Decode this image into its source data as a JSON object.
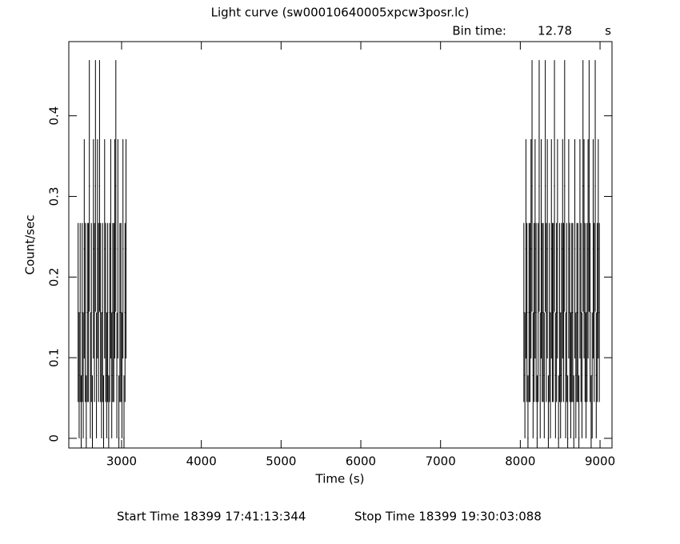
{
  "chart_data": {
    "type": "errorbar",
    "title": "Light curve (sw00010640005xpcw3posr.lc)",
    "bin_time_label": "Bin time:",
    "bin_time": 12.78,
    "bin_time_unit": "s",
    "x_label": "Time (s)",
    "y_label": "Count/sec",
    "start_time": "Start Time 18399 17:41:13:344",
    "stop_time": "Stop Time 18399 19:30:03:088",
    "color": "#000000",
    "xlim": [
      2338,
      9150
    ],
    "ylim": [
      -0.012,
      0.492
    ],
    "xticks": [
      3000,
      4000,
      5000,
      6000,
      7000,
      8000,
      9000
    ],
    "yticks": [
      0,
      0.1,
      0.2,
      0.3,
      0.4
    ],
    "x": [
      2455.0,
      2467.8,
      2480.6,
      2493.3,
      2506.1,
      2518.9,
      2531.7,
      2544.5,
      2557.2,
      2570.0,
      2582.8,
      2595.6,
      2608.4,
      2621.1,
      2633.9,
      2646.7,
      2659.5,
      2672.3,
      2685.0,
      2697.8,
      2710.6,
      2723.4,
      2736.2,
      2748.9,
      2761.7,
      2774.5,
      2787.3,
      2800.1,
      2812.8,
      2825.6,
      2838.4,
      2851.2,
      2864.0,
      2876.7,
      2889.5,
      2902.3,
      2915.1,
      2927.9,
      2940.6,
      2953.4,
      2966.2,
      2979.0,
      2991.8,
      3004.5,
      3017.3,
      3030.1,
      3042.9,
      3055.7,
      8045.0,
      8057.8,
      8070.6,
      8083.3,
      8096.1,
      8108.9,
      8121.7,
      8134.5,
      8147.2,
      8160.0,
      8172.8,
      8185.6,
      8198.4,
      8211.1,
      8223.9,
      8236.7,
      8249.5,
      8262.3,
      8275.0,
      8287.8,
      8300.6,
      8313.4,
      8326.2,
      8338.9,
      8351.7,
      8364.5,
      8377.3,
      8390.1,
      8402.8,
      8415.6,
      8428.4,
      8441.2,
      8454.0,
      8466.7,
      8479.5,
      8492.3,
      8505.1,
      8517.9,
      8530.6,
      8543.4,
      8556.2,
      8569.0,
      8581.8,
      8594.5,
      8607.3,
      8620.1,
      8632.9,
      8645.7,
      8658.4,
      8671.2,
      8684.0,
      8696.8,
      8709.6,
      8722.3,
      8735.1,
      8747.9,
      8760.7,
      8773.5,
      8786.2,
      8799.0,
      8811.8,
      8824.6,
      8837.4,
      8850.1,
      8862.9,
      8875.7,
      8888.5,
      8901.3,
      8914.0,
      8926.8,
      8939.6,
      8952.4,
      8965.2,
      8977.9,
      8990.7
    ],
    "values": [
      0.156,
      0.078,
      0.156,
      0,
      0.156,
      0.078,
      0.235,
      0.156,
      0,
      0.156,
      0.156,
      0.313,
      0.078,
      0.156,
      0,
      0.235,
      0.156,
      0.313,
      0.078,
      0.235,
      0.156,
      0.313,
      0.156,
      0.078,
      0.156,
      0,
      0.235,
      0.156,
      0.078,
      0.156,
      0,
      0.156,
      0.235,
      0.078,
      0.156,
      0.156,
      0.235,
      0.313,
      0.078,
      0.235,
      0,
      0.156,
      0.156,
      0.078,
      0.235,
      0,
      0.156,
      0.235,
      0.156,
      0.078,
      0.235,
      0.156,
      0,
      0.156,
      0.156,
      0.235,
      0.313,
      0.078,
      0.156,
      0.235,
      0.156,
      0,
      0.156,
      0.313,
      0.078,
      0.235,
      0.156,
      0.156,
      0.078,
      0.313,
      0.156,
      0.235,
      0,
      0.156,
      0.078,
      0.235,
      0.156,
      0.156,
      0.313,
      0.078,
      0.156,
      0.235,
      0,
      0.156,
      0.078,
      0.156,
      0.235,
      0.156,
      0.313,
      0.078,
      0.156,
      0,
      0.235,
      0.156,
      0.078,
      0.156,
      0.156,
      0,
      0.235,
      0.078,
      0.156,
      0.156,
      0,
      0.235,
      0.156,
      0.078,
      0.313,
      0.235,
      0.156,
      0.078,
      0.156,
      0.235,
      0.313,
      0.156,
      0,
      0.078,
      0.235,
      0.156,
      0.313,
      0.078,
      0.156,
      0.235,
      0.156
    ],
    "errors": [
      0.111,
      0.078,
      0.111,
      0.078,
      0.111,
      0.078,
      0.136,
      0.111,
      0.078,
      0.111,
      0.111,
      0.156,
      0.078,
      0.111,
      0.078,
      0.136,
      0.111,
      0.156,
      0.078,
      0.136,
      0.111,
      0.156,
      0.111,
      0.078,
      0.111,
      0.078,
      0.136,
      0.111,
      0.078,
      0.111,
      0.078,
      0.111,
      0.136,
      0.078,
      0.111,
      0.111,
      0.136,
      0.156,
      0.078,
      0.136,
      0.078,
      0.111,
      0.111,
      0.078,
      0.136,
      0.078,
      0.111,
      0.136,
      0.111,
      0.078,
      0.136,
      0.111,
      0.078,
      0.111,
      0.111,
      0.136,
      0.156,
      0.078,
      0.111,
      0.136,
      0.111,
      0.078,
      0.111,
      0.156,
      0.078,
      0.136,
      0.111,
      0.111,
      0.078,
      0.156,
      0.111,
      0.136,
      0.078,
      0.111,
      0.078,
      0.136,
      0.111,
      0.111,
      0.156,
      0.078,
      0.111,
      0.136,
      0.078,
      0.111,
      0.078,
      0.111,
      0.136,
      0.111,
      0.156,
      0.078,
      0.111,
      0.078,
      0.136,
      0.111,
      0.078,
      0.111,
      0.111,
      0.078,
      0.136,
      0.078,
      0.111,
      0.111,
      0.078,
      0.136,
      0.111,
      0.078,
      0.156,
      0.136,
      0.111,
      0.078,
      0.111,
      0.136,
      0.156,
      0.111,
      0.078,
      0.078,
      0.136,
      0.111,
      0.156,
      0.078,
      0.111,
      0.136,
      0.111
    ]
  }
}
